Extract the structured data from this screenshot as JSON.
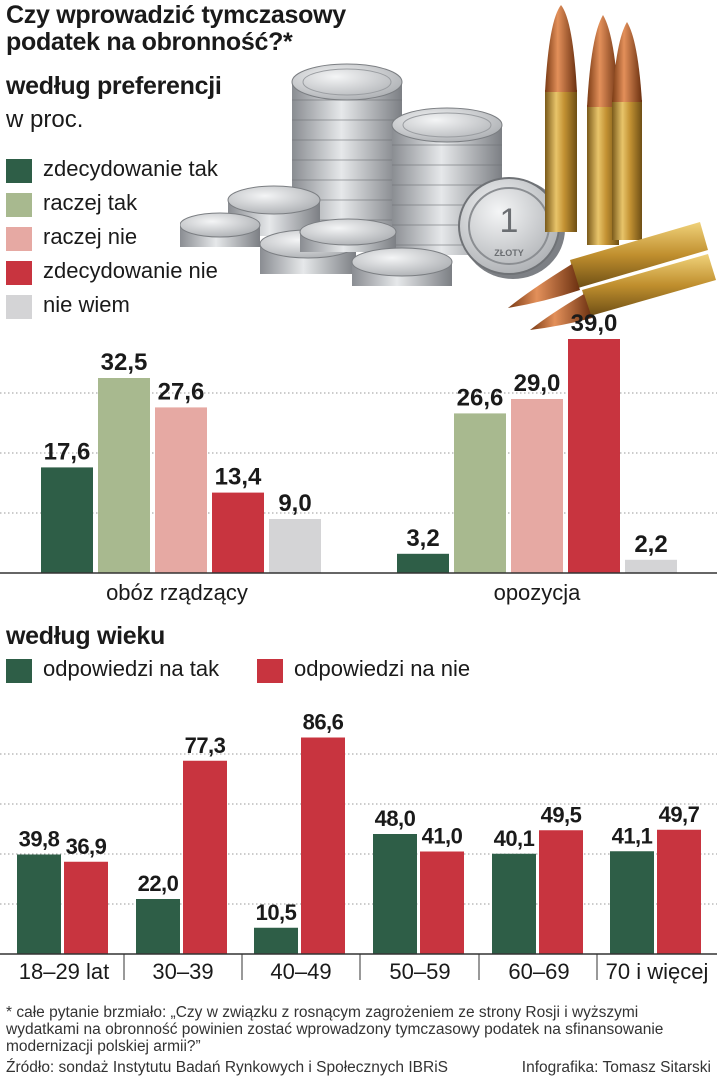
{
  "title": "Czy wprowadzić tymczasowy podatek na obronność?*",
  "section1": {
    "title": "według preferencji",
    "unit": "w proc.",
    "legend": [
      {
        "label": "zdecydowanie tak",
        "color": "#2e5e47"
      },
      {
        "label": "raczej tak",
        "color": "#a8b98f"
      },
      {
        "label": "raczej nie",
        "color": "#e6a9a3"
      },
      {
        "label": "zdecydowanie nie",
        "color": "#c8343f"
      },
      {
        "label": "nie wiem",
        "color": "#d4d4d6"
      }
    ]
  },
  "section2": {
    "title": "według wieku",
    "legend": [
      {
        "label": "odpowiedzi na tak",
        "color": "#2e5e47"
      },
      {
        "label": "odpowiedzi na nie",
        "color": "#c8343f"
      }
    ]
  },
  "illustration": {
    "coin_text": "ZŁOTY",
    "coin_value": "1"
  },
  "footnote": "* całe pytanie brzmiało: „Czy w związku z rosnącym zagrożeniem ze strony Rosji i wyższymi wydatkami na obronność powinien zostać wprowadzony tymczasowy podatek na sfinansowanie modernizacji polskiej armii?”",
  "source": "Źródło: sondaż Instytutu Badań Rynkowych i Społecznych IBRiS",
  "credit": "Infografika: Tomasz Sitarski",
  "chart_data": [
    {
      "type": "bar",
      "title": "według preferencji",
      "ylabel": "w proc.",
      "categories": [
        "obóz rządzący",
        "opozycja"
      ],
      "ylim": [
        0,
        40
      ],
      "grid": true,
      "series": [
        {
          "name": "zdecydowanie tak",
          "values": [
            17.6,
            3.2
          ],
          "labels": [
            "17,6",
            "3,2"
          ],
          "color": "#2e5e47"
        },
        {
          "name": "raczej tak",
          "values": [
            32.5,
            26.6
          ],
          "labels": [
            "32,5",
            "26,6"
          ],
          "color": "#a8b98f"
        },
        {
          "name": "raczej nie",
          "values": [
            27.6,
            29.0
          ],
          "labels": [
            "27,6",
            "29,0"
          ],
          "color": "#e6a9a3"
        },
        {
          "name": "zdecydowanie nie",
          "values": [
            13.4,
            39.0
          ],
          "labels": [
            "13,4",
            "39,0"
          ],
          "color": "#c8343f"
        },
        {
          "name": "nie wiem",
          "values": [
            9.0,
            2.2
          ],
          "labels": [
            "9,0",
            "2,2"
          ],
          "color": "#d4d4d6"
        }
      ]
    },
    {
      "type": "bar",
      "title": "według wieku",
      "categories": [
        "18–29 lat",
        "30–39",
        "40–49",
        "50–59",
        "60–69",
        "70 i więcej"
      ],
      "ylim": [
        0,
        100
      ],
      "grid": true,
      "series": [
        {
          "name": "odpowiedzi na tak",
          "values": [
            39.8,
            22.0,
            10.5,
            48.0,
            40.1,
            41.1
          ],
          "labels": [
            "39,8",
            "22,0",
            "10,5",
            "48,0",
            "40,1",
            "41,1"
          ],
          "color": "#2e5e47"
        },
        {
          "name": "odpowiedzi na nie",
          "values": [
            36.9,
            77.3,
            86.6,
            41.0,
            49.5,
            49.7
          ],
          "labels": [
            "36,9",
            "77,3",
            "86,6",
            "41,0",
            "49,5",
            "49,7"
          ],
          "color": "#c8343f"
        }
      ]
    }
  ]
}
